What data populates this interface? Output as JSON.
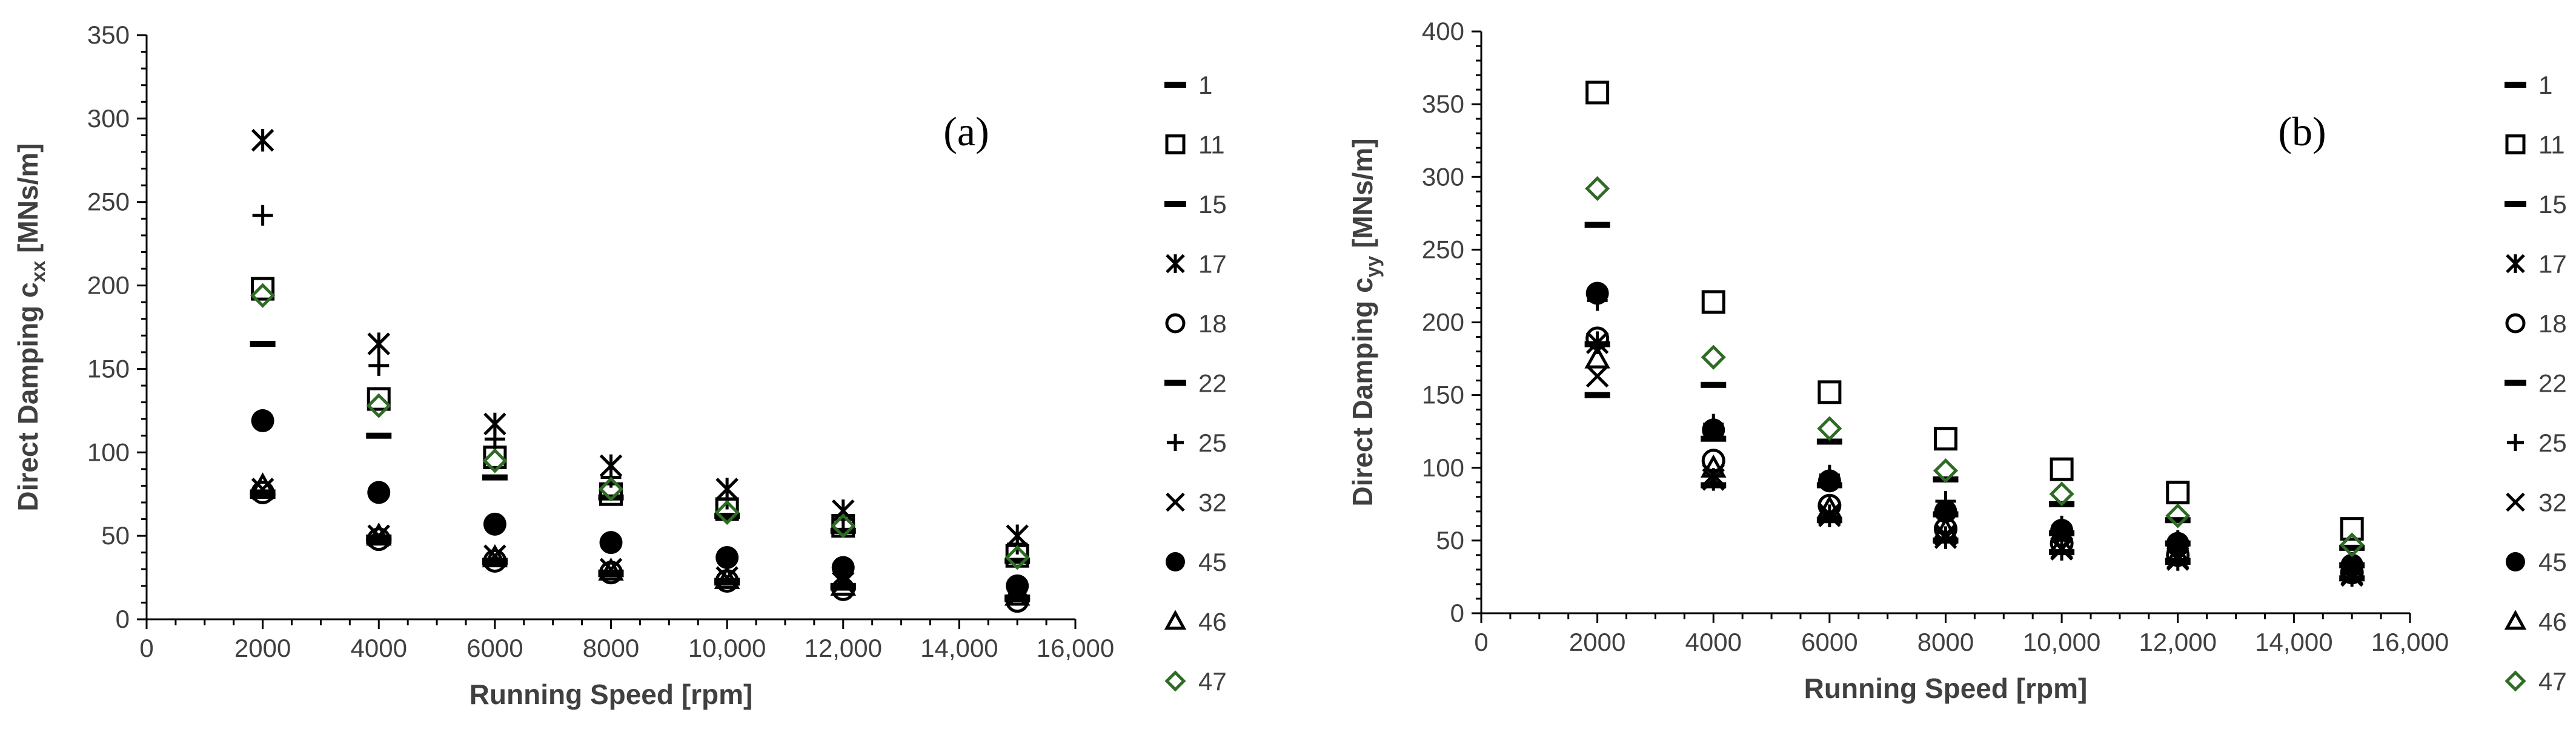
{
  "chart_data": [
    {
      "panel": "(a)",
      "type": "scatter",
      "xlabel": "Running Speed [rpm]",
      "ylabel": {
        "main": "Direct Damping c",
        "sub": "xx",
        "unit": " [MNs/m]"
      },
      "xlim": [
        0,
        16000
      ],
      "ylim": [
        0,
        350
      ],
      "xticks": [
        0,
        2000,
        4000,
        6000,
        8000,
        10000,
        12000,
        14000,
        16000
      ],
      "xtick_labels": [
        "0",
        "2000",
        "4000",
        "6000",
        "8000",
        "10,000",
        "12,000",
        "14,000",
        "16,000"
      ],
      "yticks": [
        0,
        50,
        100,
        150,
        200,
        250,
        300,
        350
      ],
      "ytick_labels": [
        "0",
        "50",
        "100",
        "150",
        "200",
        "250",
        "300",
        "350"
      ],
      "grid": false,
      "legend": "right",
      "x": [
        2000,
        4000,
        6000,
        8000,
        10000,
        12000,
        15000
      ],
      "series": [
        {
          "name": "1",
          "marker": "dash",
          "values": [
            76,
            49,
            35,
            28,
            23,
            20,
            13
          ]
        },
        {
          "name": "11",
          "marker": "square",
          "values": [
            198,
            132,
            97,
            75,
            66,
            56,
            38
          ]
        },
        {
          "name": "15",
          "marker": "dash",
          "values": [
            165,
            110,
            85,
            73,
            62,
            53,
            35
          ]
        },
        {
          "name": "17",
          "marker": "asterisk",
          "values": [
            287,
            165,
            117,
            92,
            78,
            65,
            50
          ]
        },
        {
          "name": "18",
          "marker": "circle",
          "values": [
            76,
            48,
            35,
            28,
            23,
            18,
            11
          ]
        },
        {
          "name": "22",
          "marker": "dash",
          "values": [
            74,
            47,
            34,
            27,
            22,
            19,
            12
          ]
        },
        {
          "name": "25",
          "marker": "plus",
          "values": [
            242,
            152,
            108,
            85,
            72,
            60,
            45
          ]
        },
        {
          "name": "32",
          "marker": "x",
          "values": [
            78,
            50,
            38,
            30,
            25,
            22,
            14
          ]
        },
        {
          "name": "45",
          "marker": "dot",
          "values": [
            119,
            76,
            57,
            46,
            37,
            31,
            20
          ]
        },
        {
          "name": "46",
          "marker": "triangle",
          "values": [
            80,
            50,
            37,
            29,
            24,
            20,
            14
          ]
        },
        {
          "name": "47",
          "marker": "diamond",
          "values": [
            194,
            128,
            95,
            78,
            64,
            56,
            37
          ]
        }
      ]
    },
    {
      "panel": "(b)",
      "type": "scatter",
      "xlabel": "Running Speed [rpm]",
      "ylabel": {
        "main": "Direct Damping c",
        "sub": "yy",
        "unit": " [MNs/m]"
      },
      "xlim": [
        0,
        16000
      ],
      "ylim": [
        0,
        400
      ],
      "xticks": [
        0,
        2000,
        4000,
        6000,
        8000,
        10000,
        12000,
        14000,
        16000
      ],
      "xtick_labels": [
        "0",
        "2000",
        "4000",
        "6000",
        "8000",
        "10,000",
        "12,000",
        "14,000",
        "16,000"
      ],
      "yticks": [
        0,
        50,
        100,
        150,
        200,
        250,
        300,
        350,
        400
      ],
      "ytick_labels": [
        "0",
        "50",
        "100",
        "150",
        "200",
        "250",
        "300",
        "350",
        "400"
      ],
      "grid": false,
      "legend": "right",
      "x": [
        2000,
        4000,
        6000,
        8000,
        10000,
        12000,
        15000
      ],
      "series": [
        {
          "name": "1",
          "marker": "dash",
          "values": [
            185,
            120,
            88,
            68,
            55,
            48,
            33
          ]
        },
        {
          "name": "11",
          "marker": "square",
          "values": [
            358,
            214,
            152,
            120,
            99,
            83,
            58
          ]
        },
        {
          "name": "15",
          "marker": "dash",
          "values": [
            267,
            157,
            118,
            92,
            75,
            64,
            45
          ]
        },
        {
          "name": "17",
          "marker": "asterisk",
          "values": [
            186,
            92,
            67,
            52,
            44,
            37,
            26
          ]
        },
        {
          "name": "18",
          "marker": "circle",
          "values": [
            189,
            105,
            74,
            58,
            48,
            40,
            28
          ]
        },
        {
          "name": "22",
          "marker": "dash",
          "values": [
            150,
            88,
            64,
            50,
            42,
            36,
            24
          ]
        },
        {
          "name": "25",
          "marker": "plus",
          "values": [
            215,
            130,
            95,
            77,
            60,
            50,
            35
          ]
        },
        {
          "name": "32",
          "marker": "x",
          "values": [
            163,
            95,
            68,
            54,
            45,
            38,
            27
          ]
        },
        {
          "name": "45",
          "marker": "dot",
          "values": [
            220,
            126,
            91,
            70,
            57,
            48,
            33
          ]
        },
        {
          "name": "46",
          "marker": "triangle",
          "values": [
            175,
            100,
            72,
            57,
            47,
            40,
            29
          ]
        },
        {
          "name": "47",
          "marker": "diamond",
          "values": [
            292,
            176,
            127,
            98,
            82,
            67,
            47
          ]
        }
      ]
    }
  ]
}
